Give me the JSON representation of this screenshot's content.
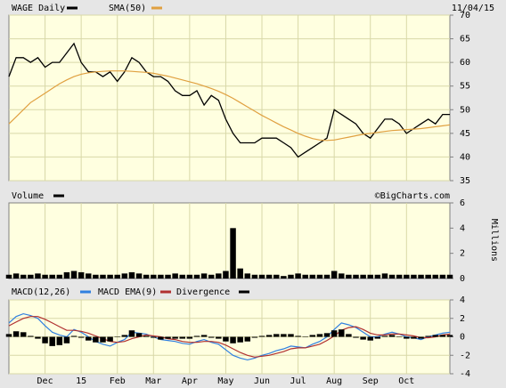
{
  "header": {
    "date": "11/04/15",
    "source": "©BigCharts.com"
  },
  "chart_data": [
    {
      "type": "line",
      "ylim": [
        35,
        70
      ],
      "yticks": [
        35,
        40,
        45,
        50,
        55,
        60,
        65,
        70
      ],
      "grid": true,
      "series": [
        {
          "name": "WAGE Daily",
          "color": "#000000",
          "values": [
            57,
            61,
            61,
            60,
            61,
            59,
            60,
            60,
            62,
            64,
            60,
            58,
            58,
            57,
            58,
            56,
            58,
            61,
            60,
            58,
            57,
            57,
            56,
            54,
            53,
            53,
            54,
            51,
            53,
            52,
            48,
            45,
            43,
            43,
            43,
            44,
            44,
            44,
            43,
            42,
            40,
            41,
            42,
            43,
            44,
            50,
            49,
            48,
            47,
            45,
            44,
            46,
            48,
            48,
            47,
            45,
            46,
            47,
            48,
            47,
            49,
            49
          ]
        },
        {
          "name": "SMA(50)",
          "color": "#e0a040",
          "values": [
            47,
            48.5,
            50,
            51.5,
            52.5,
            53.5,
            54.5,
            55.5,
            56.3,
            57,
            57.5,
            57.8,
            58,
            58.1,
            58.2,
            58.2,
            58.2,
            58.1,
            58,
            57.9,
            57.7,
            57.4,
            57.1,
            56.7,
            56.3,
            55.9,
            55.5,
            55,
            54.5,
            53.9,
            53.2,
            52.4,
            51.5,
            50.6,
            49.7,
            48.8,
            48,
            47.2,
            46.4,
            45.7,
            45,
            44.4,
            43.9,
            43.6,
            43.5,
            43.6,
            43.9,
            44.2,
            44.5,
            44.8,
            45,
            45.2,
            45.4,
            45.6,
            45.7,
            45.8,
            45.9,
            46,
            46.2,
            46.4,
            46.6,
            46.8
          ]
        }
      ]
    },
    {
      "type": "bar",
      "ylim": [
        0,
        6
      ],
      "yticks": [
        0,
        2,
        4,
        6
      ],
      "axis_label": "Millions",
      "series": [
        {
          "name": "Volume",
          "color": "#000000",
          "values": [
            0.3,
            0.4,
            0.3,
            0.3,
            0.4,
            0.3,
            0.3,
            0.3,
            0.5,
            0.6,
            0.5,
            0.4,
            0.3,
            0.3,
            0.3,
            0.3,
            0.4,
            0.5,
            0.4,
            0.3,
            0.3,
            0.3,
            0.3,
            0.4,
            0.3,
            0.3,
            0.3,
            0.4,
            0.3,
            0.4,
            0.6,
            4,
            0.8,
            0.4,
            0.3,
            0.3,
            0.3,
            0.3,
            0.2,
            0.3,
            0.4,
            0.3,
            0.3,
            0.3,
            0.3,
            0.6,
            0.4,
            0.3,
            0.3,
            0.3,
            0.3,
            0.3,
            0.4,
            0.3,
            0.3,
            0.3,
            0.3,
            0.3,
            0.3,
            0.3,
            0.3,
            0.3
          ]
        }
      ]
    },
    {
      "type": "line",
      "ylim": [
        -4,
        4
      ],
      "yticks": [
        -4,
        -2,
        0,
        2,
        4
      ],
      "categories": [
        null,
        null,
        null,
        null,
        null,
        "Dec",
        null,
        null,
        null,
        null,
        "15",
        null,
        null,
        null,
        null,
        "Feb",
        null,
        null,
        null,
        null,
        "Mar",
        null,
        null,
        null,
        null,
        "Apr",
        null,
        null,
        null,
        null,
        "May",
        null,
        null,
        null,
        null,
        "Jun",
        null,
        null,
        null,
        null,
        "Jul",
        null,
        null,
        null,
        null,
        "Aug",
        null,
        null,
        null,
        null,
        "Sep",
        null,
        null,
        null,
        null,
        "Oct",
        null,
        null,
        null,
        null,
        null,
        null
      ],
      "series": [
        {
          "name": "MACD(12,26)",
          "color": "#3080e0",
          "values": [
            1.5,
            2.2,
            2.5,
            2.3,
            2,
            1.2,
            0.5,
            0.2,
            0,
            0.8,
            0.5,
            0,
            -0.5,
            -0.8,
            -1,
            -0.6,
            -0.3,
            0.5,
            0.4,
            0.3,
            0,
            -0.3,
            -0.4,
            -0.5,
            -0.7,
            -0.8,
            -0.5,
            -0.3,
            -0.6,
            -0.8,
            -1.4,
            -2,
            -2.3,
            -2.5,
            -2.3,
            -2,
            -1.8,
            -1.5,
            -1.3,
            -1,
            -1.1,
            -1.2,
            -0.8,
            -0.5,
            0,
            0.8,
            1.5,
            1.3,
            1,
            0.5,
            0,
            0,
            0.3,
            0.5,
            0.3,
            0,
            -0.1,
            -0.3,
            0,
            0.2,
            0.4,
            0.5
          ]
        },
        {
          "name": "MACD EMA(9)",
          "color": "#b03030",
          "values": [
            1.2,
            1.6,
            2,
            2.2,
            2.2,
            1.9,
            1.5,
            1.1,
            0.7,
            0.7,
            0.6,
            0.4,
            0.1,
            -0.2,
            -0.5,
            -0.6,
            -0.5,
            -0.2,
            0,
            0.2,
            0.1,
            0,
            -0.2,
            -0.3,
            -0.5,
            -0.6,
            -0.6,
            -0.5,
            -0.5,
            -0.6,
            -0.9,
            -1.3,
            -1.7,
            -2,
            -2.2,
            -2.1,
            -2,
            -1.8,
            -1.6,
            -1.3,
            -1.2,
            -1.2,
            -1,
            -0.8,
            -0.4,
            0.1,
            0.7,
            1,
            1.1,
            0.8,
            0.4,
            0.2,
            0.2,
            0.3,
            0.3,
            0.2,
            0.1,
            -0.1,
            -0.1,
            0,
            0.2,
            0.3
          ]
        },
        {
          "name": "Divergence",
          "color": "#000000",
          "kind": "bar",
          "values": [
            0.3,
            0.6,
            0.5,
            0.1,
            -0.2,
            -0.7,
            -1,
            -0.9,
            -0.7,
            0.1,
            -0.1,
            -0.4,
            -0.6,
            -0.6,
            -0.5,
            0,
            0.2,
            0.7,
            0.4,
            0.1,
            -0.1,
            -0.3,
            -0.2,
            -0.2,
            -0.2,
            -0.2,
            0.1,
            0.2,
            -0.1,
            -0.2,
            -0.5,
            -0.7,
            -0.6,
            -0.5,
            -0.1,
            0.1,
            0.2,
            0.3,
            0.3,
            0.3,
            0.1,
            0,
            0.2,
            0.3,
            0.4,
            0.7,
            0.8,
            0.3,
            -0.1,
            -0.3,
            -0.4,
            -0.2,
            0.1,
            0.2,
            0,
            -0.2,
            -0.2,
            -0.2,
            0.1,
            0.2,
            0.2,
            0.2
          ]
        }
      ]
    }
  ]
}
